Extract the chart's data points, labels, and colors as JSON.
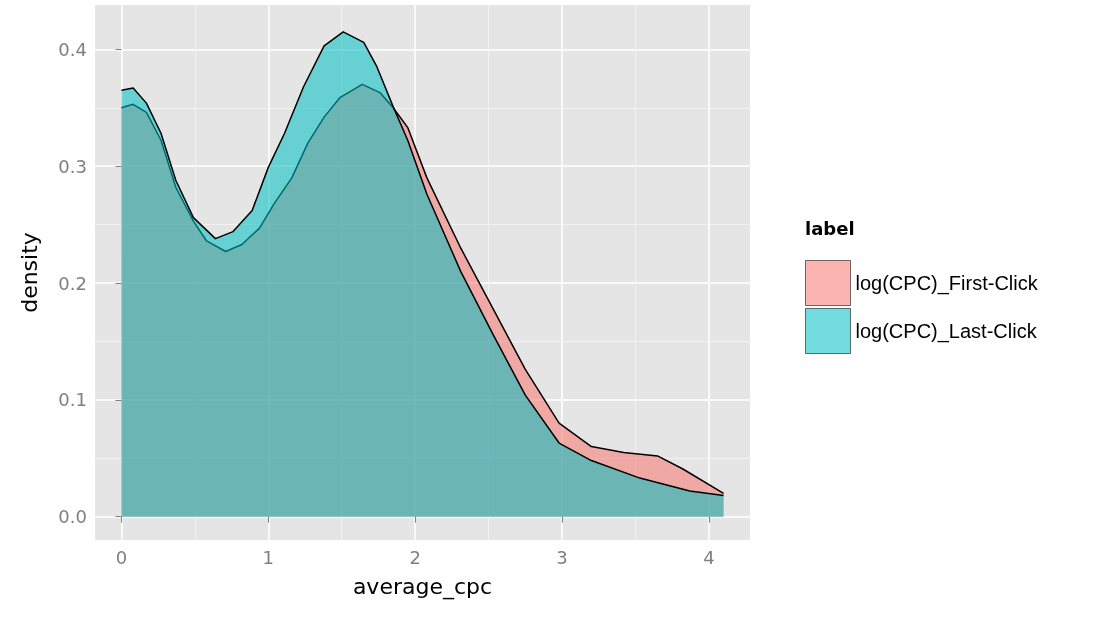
{
  "chart_data": {
    "type": "area",
    "xlabel": "average_cpc",
    "ylabel": "density",
    "legend_title": "label",
    "legend": "right",
    "xlim": [
      -0.18,
      4.28
    ],
    "ylim": [
      -0.02,
      0.438
    ],
    "xticks": [
      0,
      1,
      2,
      3,
      4
    ],
    "yticks": [
      {
        "value": 0,
        "label": "0.0"
      },
      0.1,
      0.2,
      0.3,
      0.4
    ],
    "grid": true,
    "marker": "none",
    "line_style": "solid",
    "series": [
      {
        "name": "log(CPC)_First-Click",
        "color": "#f8766d",
        "x": [
          0,
          0.08,
          0.17,
          0.27,
          0.37,
          0.49,
          0.58,
          0.71,
          0.82,
          0.94,
          1.04,
          1.16,
          1.27,
          1.38,
          1.49,
          1.64,
          1.76,
          1.85,
          1.95,
          2.08,
          2.31,
          2.53,
          2.75,
          2.98,
          3.2,
          3.42,
          3.65,
          3.82,
          4.1
        ],
        "values": [
          0.35,
          0.353,
          0.346,
          0.322,
          0.282,
          0.253,
          0.236,
          0.227,
          0.233,
          0.247,
          0.268,
          0.29,
          0.32,
          0.342,
          0.359,
          0.37,
          0.363,
          0.35,
          0.333,
          0.29,
          0.23,
          0.178,
          0.126,
          0.08,
          0.06,
          0.055,
          0.052,
          0.041,
          0.02
        ]
      },
      {
        "name": "log(CPC)_Last-Click",
        "color": "#00bfc4",
        "x": [
          0,
          0.08,
          0.17,
          0.27,
          0.37,
          0.49,
          0.64,
          0.76,
          0.89,
          1.0,
          1.11,
          1.24,
          1.38,
          1.51,
          1.65,
          1.74,
          1.85,
          1.95,
          2.08,
          2.31,
          2.53,
          2.75,
          2.98,
          3.2,
          3.53,
          3.87,
          4.1
        ],
        "values": [
          0.365,
          0.367,
          0.354,
          0.328,
          0.288,
          0.256,
          0.238,
          0.244,
          0.262,
          0.299,
          0.328,
          0.368,
          0.403,
          0.415,
          0.406,
          0.385,
          0.351,
          0.322,
          0.276,
          0.21,
          0.156,
          0.104,
          0.063,
          0.048,
          0.033,
          0.022,
          0.018
        ]
      }
    ]
  }
}
